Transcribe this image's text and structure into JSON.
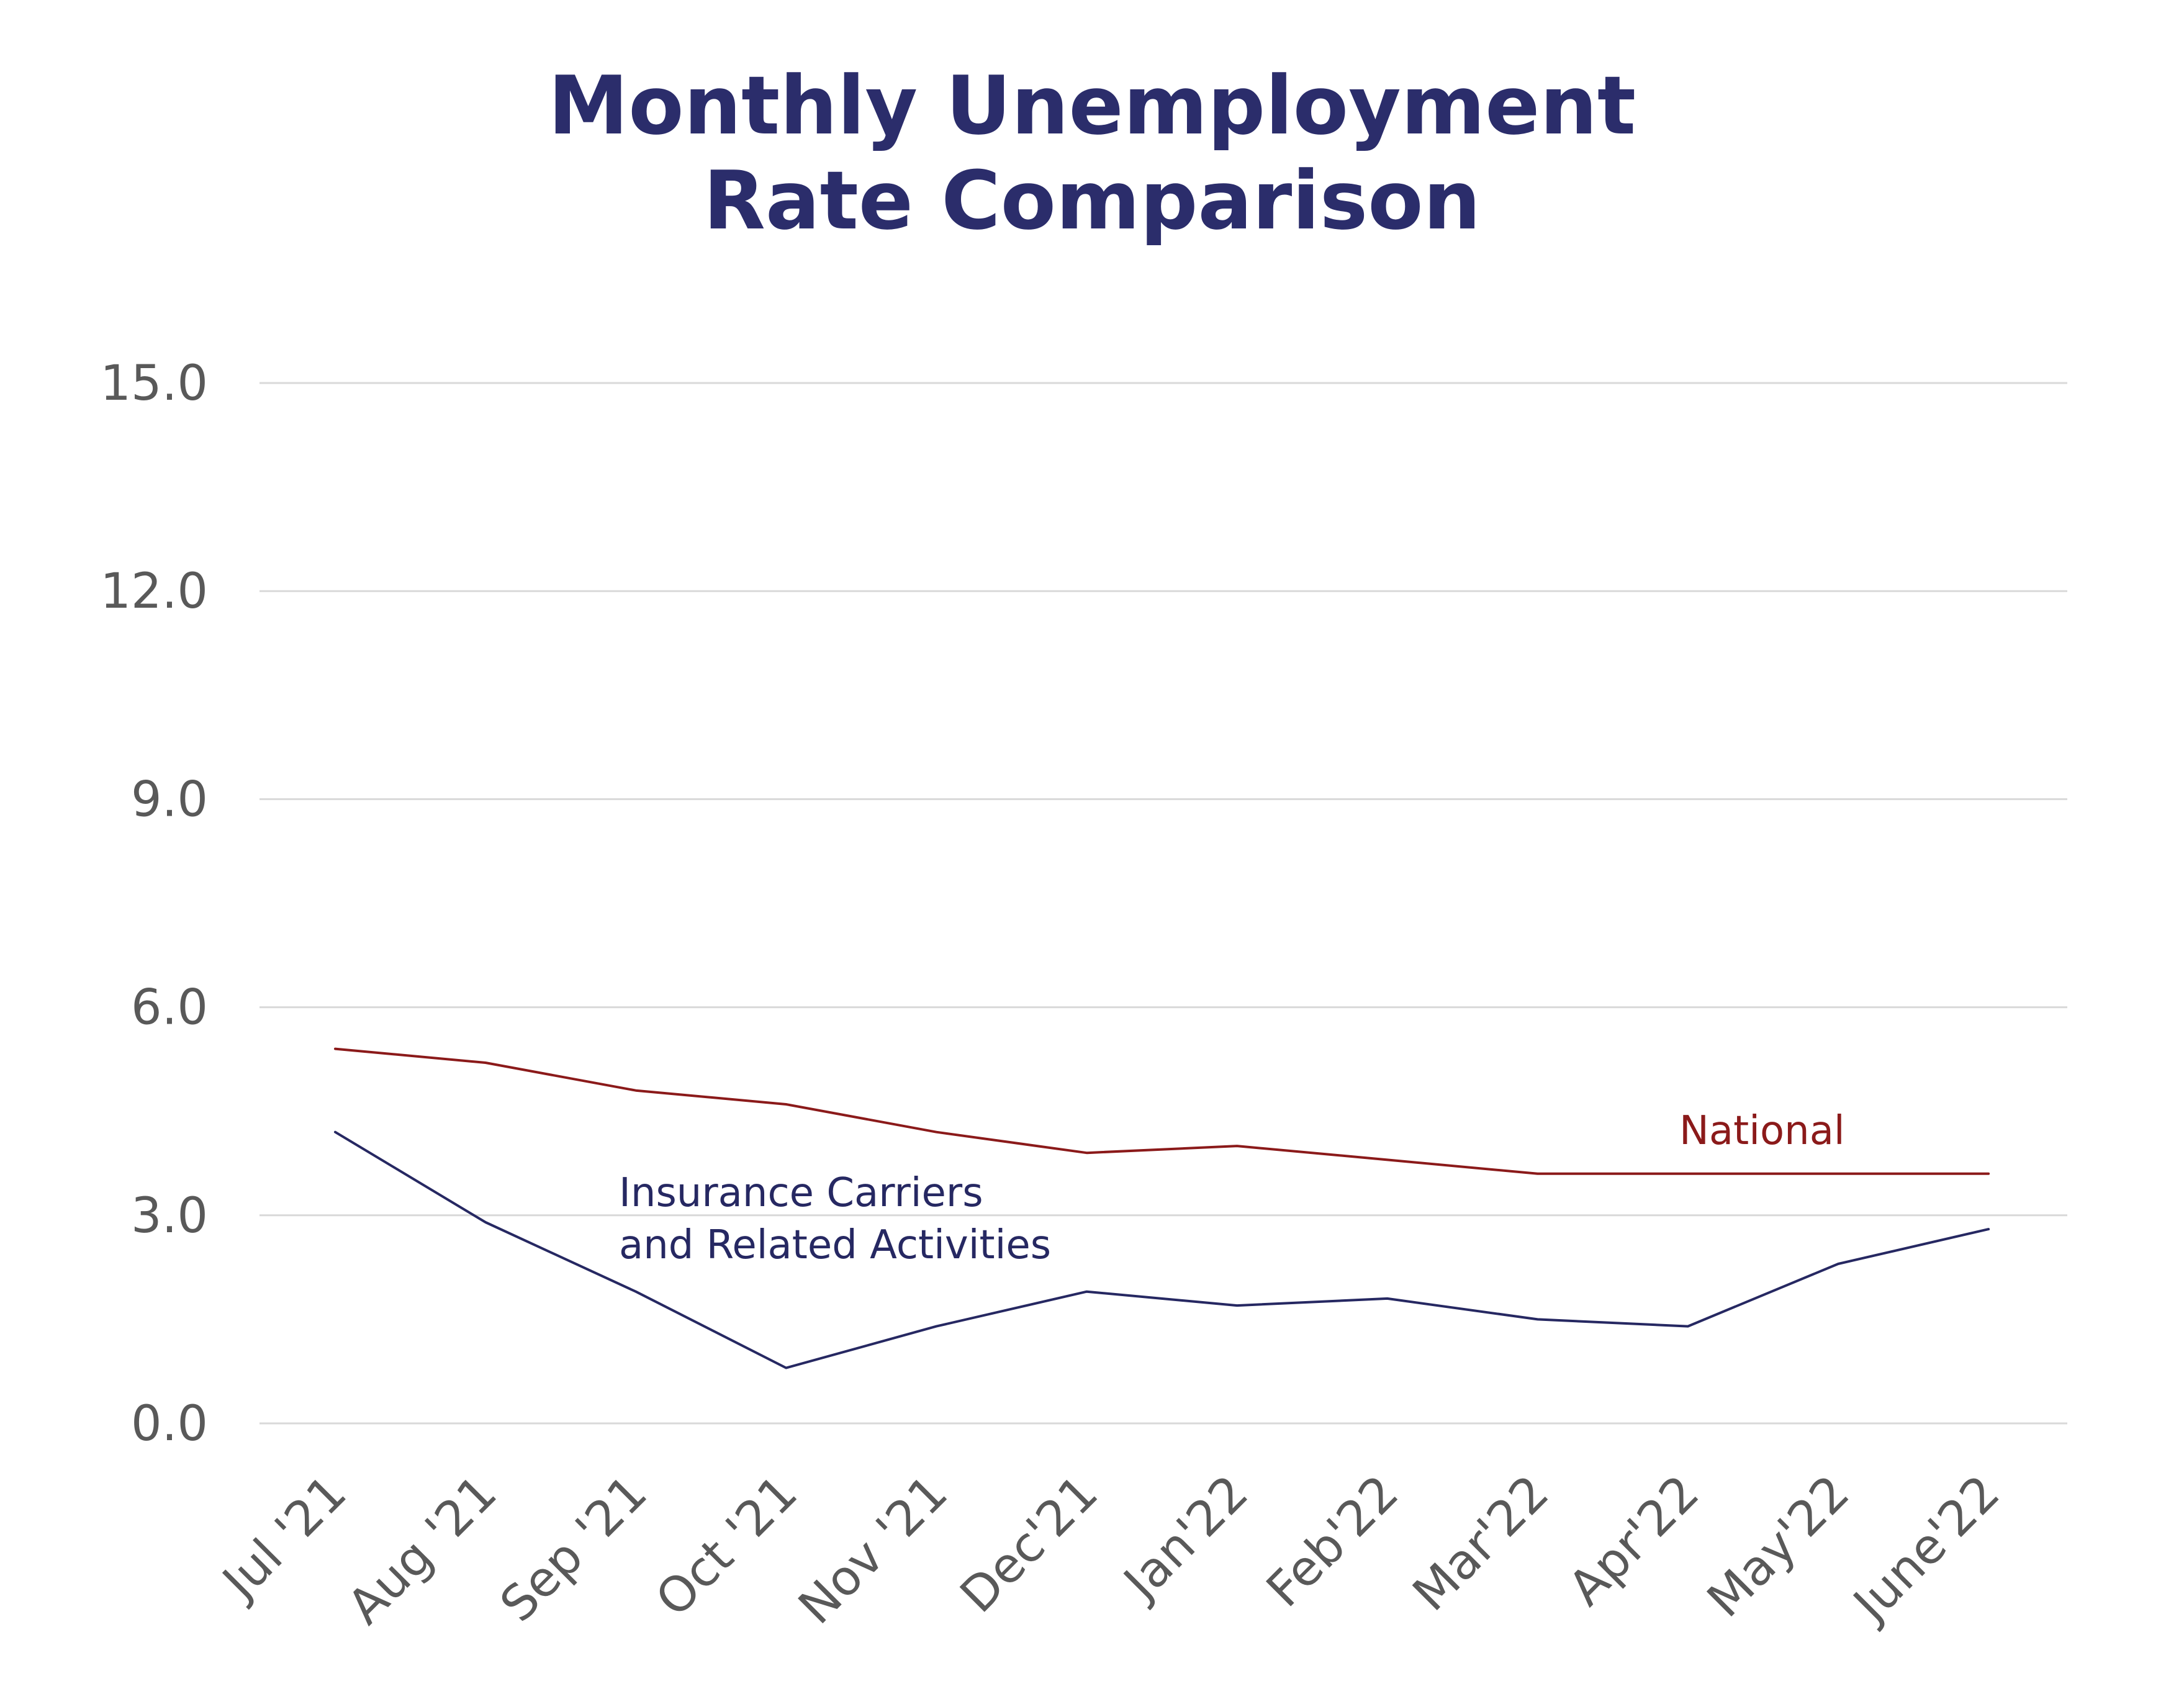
{
  "chart_data": {
    "type": "line",
    "title_lines": [
      "Monthly Unemployment",
      "Rate Comparison"
    ],
    "xlabel": "",
    "ylabel": "",
    "categories": [
      "Jul '21",
      "Aug '21",
      "Sep '21",
      "Oct '21",
      "Nov '21",
      "Dec'21",
      "Jan'22",
      "Feb'22",
      "Mar'22",
      "Apr'22",
      "May'22",
      "June'22"
    ],
    "yticks": [
      "0.0",
      "3.0",
      "6.0",
      "9.0",
      "12.0",
      "15.0"
    ],
    "ylim": [
      0,
      15
    ],
    "grid": true,
    "legend": "none",
    "series": [
      {
        "name": "National",
        "label_lines": [
          "National"
        ],
        "color": "#8b1a1a",
        "values": [
          5.4,
          5.2,
          4.8,
          4.6,
          4.2,
          3.9,
          4.0,
          3.8,
          3.6,
          3.6,
          3.6,
          3.6
        ]
      },
      {
        "name": "Insurance Carriers and Related Activities",
        "label_lines": [
          "Insurance Carriers",
          "and Related Activities"
        ],
        "color": "#262862",
        "values": [
          4.2,
          2.9,
          1.9,
          0.8,
          1.4,
          1.9,
          1.7,
          1.8,
          1.5,
          1.4,
          2.3,
          2.8
        ]
      }
    ]
  },
  "style": {
    "title_color": "#2b2d6b",
    "tick_color": "#595959",
    "grid_color": "#d9d9d9"
  }
}
